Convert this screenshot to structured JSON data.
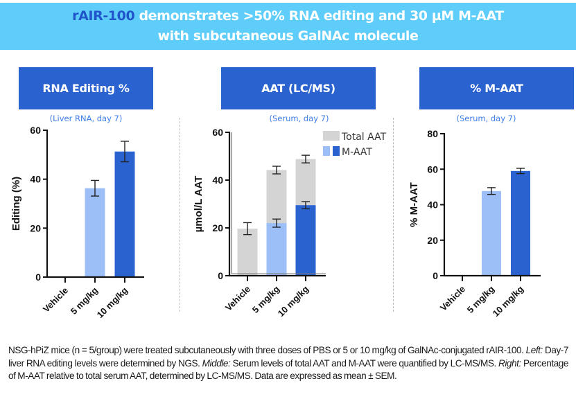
{
  "banner": {
    "brand": "rAIR-100",
    "line1_rest": " demonstrates >50% RNA editing and 30 µM M-AAT",
    "line2": "with subcutaneous GalNAc molecule"
  },
  "colors": {
    "banner_bg": "#5ecdfa",
    "panel_header_bg": "#2a63d0",
    "subtitle": "#3d7de6",
    "total_aat": "#d4d4d4",
    "low_dose": "#9dbff8",
    "high_dose": "#2a63d0"
  },
  "panels": [
    {
      "header": "RNA Editing %",
      "subtitle": "(Liver RNA, day 7)"
    },
    {
      "header": "AAT (LC/MS)",
      "subtitle": "(Serum, day 7)"
    },
    {
      "header": "% M-AAT",
      "subtitle": "(Serum, day 7)"
    }
  ],
  "chart_data": [
    {
      "type": "bar",
      "title": "RNA Editing %",
      "subtitle": "(Liver RNA, day 7)",
      "xlabel": "",
      "ylabel": "Editing (%)",
      "ylim": [
        0,
        60
      ],
      "yticks": [
        0,
        20,
        40,
        60
      ],
      "categories": [
        "Vehicle",
        "5 mg/kg",
        "10 mg/kg"
      ],
      "series": [
        {
          "name": "Editing",
          "values": [
            0.2,
            36.3,
            51.3
          ],
          "sem": [
            0,
            3.2,
            4.2
          ],
          "colors": [
            "#d4d4d4",
            "#9dbff8",
            "#2a63d0"
          ]
        }
      ],
      "grid": false
    },
    {
      "type": "bar",
      "title": "AAT (LC/MS)",
      "subtitle": "(Serum, day 7)",
      "xlabel": "",
      "ylabel": "µmol/L AAT",
      "ylim": [
        0,
        60
      ],
      "yticks": [
        0,
        20,
        40,
        60
      ],
      "categories": [
        "Vehicle",
        "5 mg/kg",
        "10 mg/kg"
      ],
      "series": [
        {
          "name": "Total AAT",
          "values": [
            19.7,
            44.2,
            48.8
          ],
          "sem": [
            2.5,
            1.6,
            1.6
          ],
          "color": "#d4d4d4"
        },
        {
          "name": "M-AAT",
          "values": [
            0,
            22.0,
            29.5
          ],
          "sem": [
            0,
            1.7,
            1.5
          ],
          "colors": [
            "#9dbff8",
            "#9dbff8",
            "#2a63d0"
          ]
        }
      ],
      "legend": [
        "Total AAT",
        "M-AAT"
      ],
      "legend_position": "top-right",
      "grid": false
    },
    {
      "type": "bar",
      "title": "% M-AAT",
      "subtitle": "(Serum, day 7)",
      "xlabel": "",
      "ylabel": "% M-AAT",
      "ylim": [
        0,
        80
      ],
      "yticks": [
        0,
        20,
        40,
        60,
        80
      ],
      "categories": [
        "Vehicle",
        "5 mg/kg",
        "10 mg/kg"
      ],
      "series": [
        {
          "name": "% M-AAT",
          "values": [
            0,
            47.7,
            59.0
          ],
          "sem": [
            0,
            1.9,
            1.5
          ],
          "colors": [
            "#d4d4d4",
            "#9dbff8",
            "#2a63d0"
          ]
        }
      ],
      "grid": false
    }
  ],
  "caption": {
    "p1": "NSG-hPiZ mice (n = 5/group) were treated subcutaneously with three doses of PBS or 5 or 10 mg/kg of GalNAc-conjugated rAIR-100. ",
    "left_label": "Left:",
    "p2": " Day-7 liver RNA editing levels were determined by NGS. ",
    "middle_label": "Middle:",
    "p3": " Serum levels of total AAT and M-AAT were quantified by LC-MS/MS. ",
    "right_label": "Right:",
    "p4": " Percentage of M-AAT relative to total serum AAT, determined by LC-MS/MS. Data are expressed as mean ± SEM."
  }
}
